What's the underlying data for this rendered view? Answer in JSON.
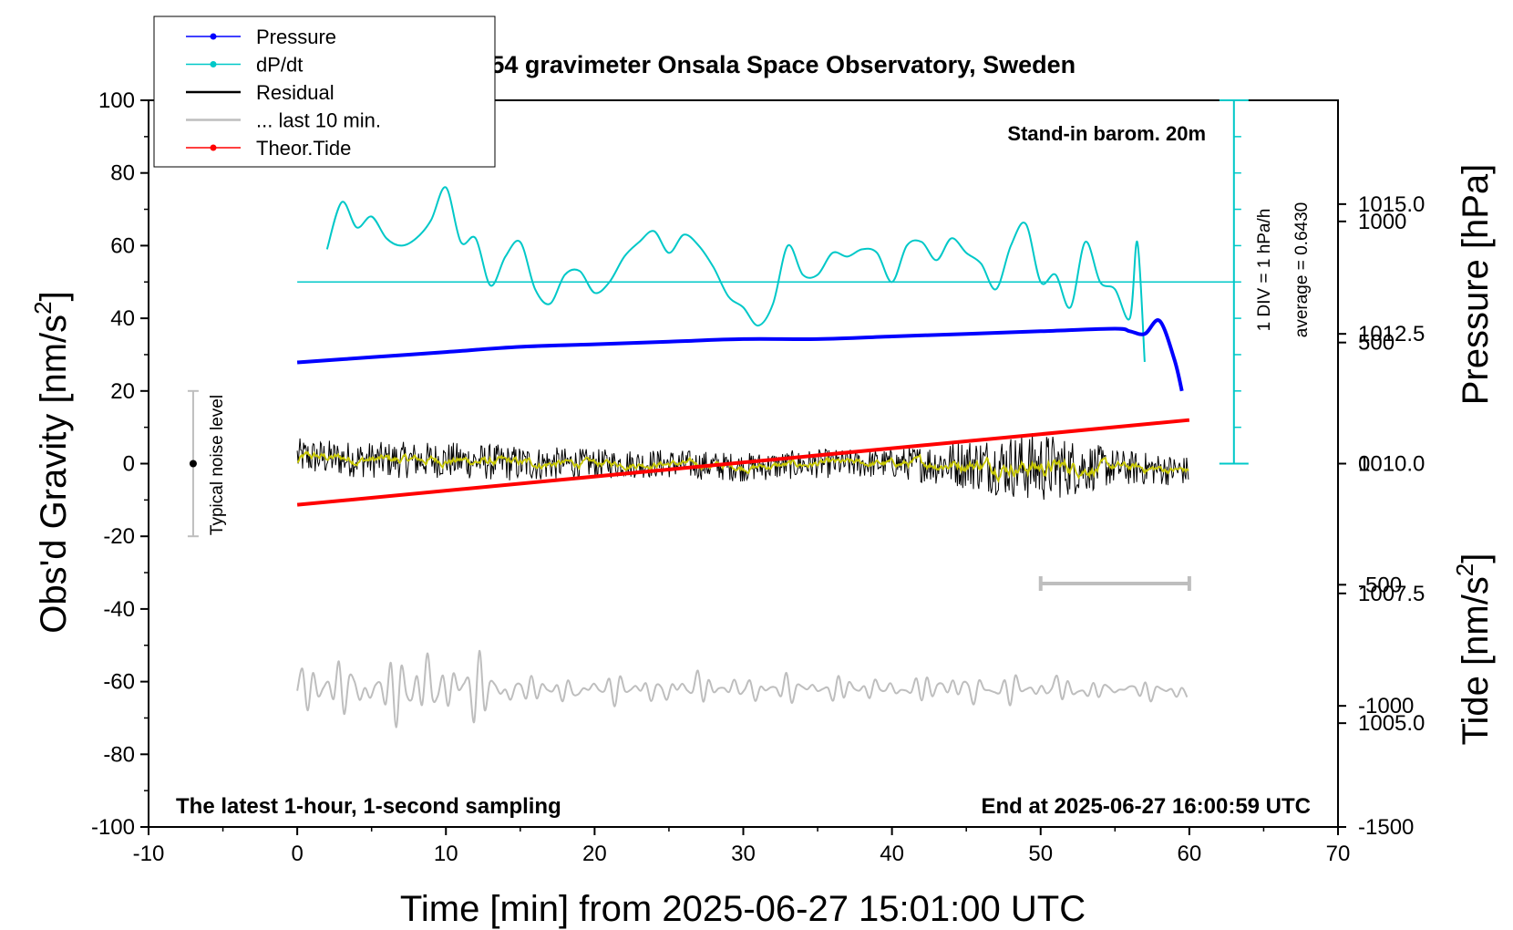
{
  "chart_data": {
    "type": "line",
    "title": "SCG_054 gravimeter Onsala Space Observatory, Sweden",
    "xlabel": "Time [min] from 2025-06-27 15:01:00 UTC",
    "ylabel_left": "Obs'd Gravity [nm/s",
    "ylabel_right_top": "Pressure [hPa]",
    "ylabel_right_bottom": "Tide [nm/s",
    "unit_superscript": "2",
    "xlim": [
      -10,
      70
    ],
    "ylim_gravity": [
      -100,
      100
    ],
    "ylim_pressure": [
      1003.0,
      1017.0
    ],
    "ylim_tide": [
      -1500,
      1500
    ],
    "x_ticks": [
      "-10",
      "0",
      "10",
      "20",
      "30",
      "40",
      "50",
      "60",
      "70"
    ],
    "gravity_ticks": [
      "100",
      "80",
      "60",
      "40",
      "20",
      "0",
      "-20",
      "-40",
      "-60",
      "-80",
      "-100"
    ],
    "pressure_ticks": [
      "1015.0",
      "1012.5",
      "1010.0",
      "1007.5",
      "1005.0"
    ],
    "tide_ticks": [
      "1000",
      "500",
      "0",
      "-500",
      "-1000",
      "-1500"
    ],
    "annotations": {
      "barometer": "Stand-in barom. 20m",
      "scale": "1 DIV = 1 hPa/h",
      "average": "average = 0.6430",
      "noise": "Typical noise level",
      "bottom_left": "The latest 1-hour, 1-second sampling",
      "bottom_right": "End at 2025-06-27 16:00:59 UTC"
    },
    "legend": {
      "position": "top-left",
      "entries": [
        {
          "label": "Pressure",
          "color": "#0000ff",
          "marker": "dot"
        },
        {
          "label": "dP/dt",
          "color": "#00c8c8",
          "marker": "dot"
        },
        {
          "label": "Residual",
          "color": "#000000",
          "marker": "none"
        },
        {
          "label": "... last 10 min.",
          "color": "#bebebe",
          "marker": "none"
        },
        {
          "label": "Theor.Tide",
          "color": "#ff0000",
          "marker": "dot"
        }
      ]
    },
    "colors": {
      "pressure": "#0000ff",
      "dpdt": "#00c8c8",
      "residual": "#000000",
      "residual_smooth": "#c8c800",
      "last10": "#bebebe",
      "tide": "#ff0000"
    },
    "series": [
      {
        "name": "Pressure",
        "axis": "pressure_hPa",
        "x": [
          0,
          5,
          10,
          15,
          20,
          25,
          30,
          35,
          40,
          45,
          50,
          55,
          56,
          57,
          58,
          59,
          59.5
        ],
        "values": [
          1011.95,
          1012.05,
          1012.15,
          1012.25,
          1012.3,
          1012.35,
          1012.4,
          1012.4,
          1012.45,
          1012.5,
          1012.55,
          1012.6,
          1012.55,
          1012.5,
          1012.75,
          1012.0,
          1011.4
        ]
      },
      {
        "name": "dP/dt",
        "axis": "gravity_scale",
        "baseline": 50,
        "x": [
          2,
          3,
          4,
          5,
          6,
          7,
          8,
          9,
          10,
          11,
          12,
          13,
          14,
          15,
          16,
          17,
          18,
          19,
          20,
          21,
          22,
          23,
          24,
          25,
          26,
          27,
          28,
          29,
          30,
          31,
          32,
          33,
          34,
          35,
          36,
          37,
          38,
          39,
          40,
          41,
          42,
          43,
          44,
          45,
          46,
          47,
          48,
          49,
          50,
          51,
          52,
          53,
          54,
          55,
          56,
          56.5,
          57
        ],
        "values": [
          59,
          72,
          65,
          68,
          62,
          60,
          62,
          67,
          76,
          61,
          62,
          49,
          57,
          61,
          48,
          44,
          52,
          53,
          47,
          50,
          57,
          61,
          64,
          58,
          63,
          60,
          54,
          46,
          43,
          38,
          44,
          60,
          52,
          52,
          58,
          57,
          59,
          58,
          50,
          60,
          61,
          56,
          62,
          58,
          55,
          48,
          60,
          66,
          50,
          52,
          43,
          61,
          50,
          48,
          40,
          61,
          28
        ]
      },
      {
        "name": "Residual",
        "axis": "gravity",
        "x": [
          0,
          5,
          10,
          15,
          20,
          25,
          30,
          35,
          40,
          45,
          50,
          55,
          60
        ],
        "values": [
          2,
          1,
          1,
          0,
          0,
          0,
          -1,
          0,
          0,
          0,
          -1,
          -1,
          -2
        ],
        "amplitude": [
          5,
          5,
          5,
          5,
          4,
          4,
          4,
          4,
          4,
          7,
          10,
          5,
          4
        ]
      },
      {
        "name": "... last 10 min.",
        "axis": "gravity",
        "x": [
          0,
          5,
          10,
          15,
          20,
          25,
          30,
          35,
          40,
          45,
          50,
          55,
          60
        ],
        "values": [
          -62,
          -62,
          -62,
          -62,
          -62,
          -62,
          -62,
          -62,
          -62,
          -62,
          -62,
          -62,
          -63
        ],
        "amplitude": [
          8,
          8,
          13,
          4,
          4,
          5,
          4,
          4,
          4,
          5,
          4,
          3,
          3
        ]
      },
      {
        "name": "Theor.Tide",
        "axis": "tide",
        "x": [
          0,
          60
        ],
        "values": [
          -170,
          180
        ]
      }
    ],
    "noise_bar": {
      "x": -7,
      "y_center": 0,
      "y_low": -20,
      "y_high": 20
    },
    "last10_bracket": {
      "x_start": 50,
      "x_end": 60,
      "y_gravity": -33
    }
  }
}
